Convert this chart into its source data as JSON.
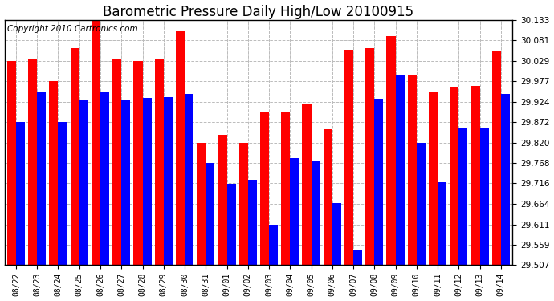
{
  "title": "Barometric Pressure Daily High/Low 20100915",
  "copyright": "Copyright 2010 Cartronics.com",
  "dates": [
    "08/22",
    "08/23",
    "08/24",
    "08/25",
    "08/26",
    "08/27",
    "08/28",
    "08/29",
    "08/30",
    "08/31",
    "09/01",
    "09/02",
    "09/03",
    "09/04",
    "09/05",
    "09/06",
    "09/07",
    "09/08",
    "09/09",
    "09/10",
    "09/11",
    "09/12",
    "09/13",
    "09/14"
  ],
  "highs": [
    30.029,
    30.033,
    29.977,
    30.061,
    30.133,
    30.033,
    30.029,
    30.033,
    30.105,
    29.82,
    29.84,
    29.82,
    29.9,
    29.898,
    29.92,
    29.855,
    30.058,
    30.061,
    30.093,
    29.993,
    29.95,
    29.96,
    29.965,
    30.055
  ],
  "lows": [
    29.872,
    29.95,
    29.872,
    29.929,
    29.95,
    29.93,
    29.934,
    29.937,
    29.945,
    29.768,
    29.715,
    29.725,
    29.61,
    29.78,
    29.775,
    29.665,
    29.545,
    29.932,
    29.993,
    29.82,
    29.719,
    29.858,
    29.858,
    29.945
  ],
  "y_ticks": [
    29.507,
    29.559,
    29.611,
    29.664,
    29.716,
    29.768,
    29.82,
    29.872,
    29.924,
    29.977,
    30.029,
    30.081,
    30.133
  ],
  "y_min": 29.507,
  "y_max": 30.133,
  "high_color": "#ff0000",
  "low_color": "#0000ff",
  "bg_color": "#ffffff",
  "grid_color": "#bbbbbb",
  "title_fontsize": 12,
  "copyright_fontsize": 7.5
}
